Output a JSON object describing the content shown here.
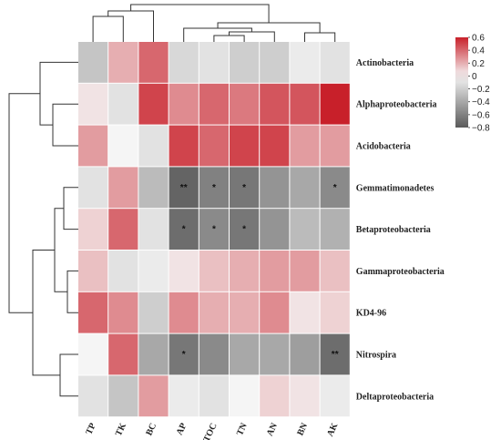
{
  "chart_data": {
    "type": "heatmap",
    "columns": [
      "TP",
      "TK",
      "BC",
      "AP",
      "TOC",
      "TN",
      "AN",
      "BN",
      "AK"
    ],
    "rows": [
      "Actinobacteria",
      "Alphaproteobacteria",
      "Acidobacteria",
      "Gemmatimonadetes",
      "Betaproteobacteria",
      "Gammaproteobacteria",
      "KD4-96",
      "Nitrospira",
      "Deltaproteobacteria"
    ],
    "values": [
      [
        -0.25,
        0.2,
        0.4,
        -0.15,
        -0.1,
        -0.2,
        -0.2,
        -0.05,
        -0.1
      ],
      [
        0.05,
        -0.1,
        0.5,
        0.3,
        0.4,
        0.35,
        0.45,
        0.45,
        0.6
      ],
      [
        0.25,
        0.0,
        -0.1,
        0.5,
        0.4,
        0.5,
        0.5,
        0.25,
        0.25
      ],
      [
        -0.1,
        0.25,
        -0.3,
        -0.75,
        -0.6,
        -0.65,
        -0.5,
        -0.4,
        -0.55
      ],
      [
        0.1,
        0.4,
        -0.1,
        -0.7,
        -0.55,
        -0.65,
        -0.5,
        -0.3,
        -0.35
      ],
      [
        0.15,
        -0.1,
        -0.05,
        0.05,
        0.15,
        0.2,
        0.25,
        0.25,
        0.15
      ],
      [
        0.4,
        0.3,
        -0.2,
        0.3,
        0.2,
        0.2,
        0.3,
        0.05,
        0.1
      ],
      [
        0.0,
        0.4,
        -0.4,
        -0.65,
        -0.55,
        -0.4,
        -0.4,
        -0.45,
        -0.7
      ],
      [
        -0.1,
        -0.25,
        0.25,
        -0.05,
        -0.1,
        0.0,
        0.1,
        0.05,
        -0.05
      ]
    ],
    "significance": [
      [
        "",
        "",
        "",
        "",
        "",
        "",
        "",
        "",
        ""
      ],
      [
        "",
        "",
        "",
        "",
        "",
        "",
        "",
        "",
        ""
      ],
      [
        "",
        "",
        "",
        "",
        "",
        "",
        "",
        "",
        ""
      ],
      [
        "",
        "",
        "",
        "**",
        "*",
        "*",
        "",
        "",
        "*"
      ],
      [
        "",
        "",
        "",
        "*",
        "*",
        "*",
        "",
        "",
        ""
      ],
      [
        "",
        "",
        "",
        "",
        "",
        "",
        "",
        "",
        ""
      ],
      [
        "",
        "",
        "",
        "",
        "",
        "",
        "",
        "",
        ""
      ],
      [
        "",
        "",
        "",
        "*",
        "",
        "",
        "",
        "",
        "**"
      ],
      [
        "",
        "",
        "",
        "",
        "",
        "",
        "",
        "",
        ""
      ]
    ],
    "colorbar": {
      "ticks": [
        0.6,
        0.4,
        0.2,
        0,
        -0.2,
        -0.4,
        -0.6,
        -0.8
      ],
      "tick_labels": [
        "0.6",
        "0.4",
        "0.2",
        "0",
        "−0.2",
        "−0.4",
        "−0.6",
        "−0.8"
      ],
      "range": [
        -0.8,
        0.6
      ],
      "colors": {
        "high": "#c8202a",
        "mid": "#f5f5f5",
        "low": "#5a5a5a"
      }
    },
    "title": "",
    "xlabel": "",
    "ylabel": "",
    "row_dendrogram": true,
    "column_dendrogram": true
  }
}
